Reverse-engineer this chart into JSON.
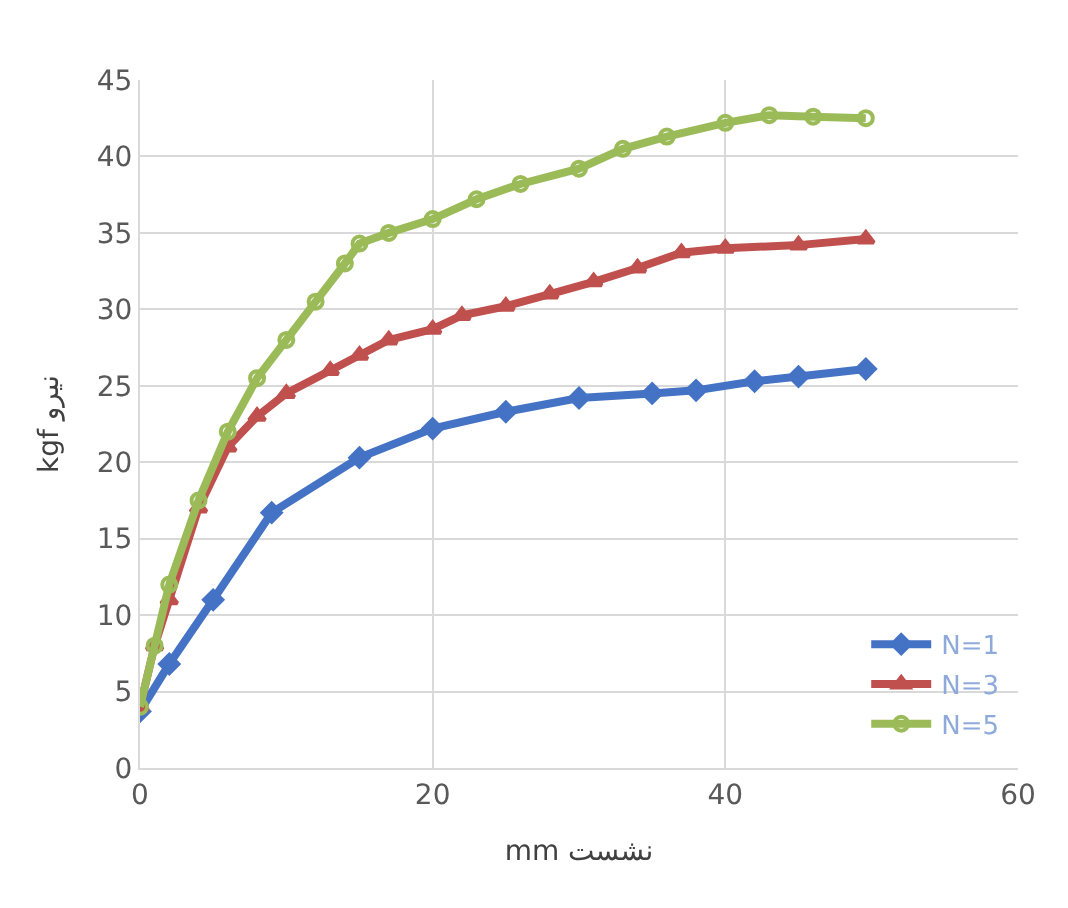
{
  "chart_data": {
    "type": "line",
    "xlabel": "mm نشست",
    "ylabel": "kgf نیرو",
    "xlim": [
      0,
      60
    ],
    "xticks": [
      0,
      20,
      40,
      60
    ],
    "ylim": [
      0,
      45
    ],
    "yticks": [
      0,
      5,
      10,
      15,
      20,
      25,
      30,
      35,
      40,
      45
    ],
    "grid": true,
    "legend": "bottom right",
    "line_style": "solid",
    "series": [
      {
        "name": "N=1",
        "color": "#4472c4",
        "marker": "diamond",
        "x": [
          0,
          2,
          5,
          9,
          15,
          20,
          25,
          30,
          35,
          38,
          42,
          45,
          49.6
        ],
        "values": [
          3.7,
          6.8,
          11,
          16.7,
          20.3,
          22.2,
          23.3,
          24.2,
          24.5,
          24.7,
          25.3,
          25.6,
          26.1
        ]
      },
      {
        "name": "N=3",
        "color": "#c0504d",
        "marker": "triangle",
        "x": [
          0,
          1,
          2,
          4,
          6,
          8,
          10,
          13,
          15,
          17,
          20,
          22,
          25,
          28,
          31,
          34,
          37,
          40,
          45,
          49.6
        ],
        "values": [
          4,
          8,
          11,
          17,
          21,
          23,
          24.5,
          26,
          27,
          28,
          28.7,
          29.6,
          30.2,
          31,
          31.8,
          32.7,
          33.7,
          34,
          34.2,
          34.6
        ]
      },
      {
        "name": "N=5",
        "color": "#9bbb59",
        "marker": "circle",
        "x": [
          0,
          1,
          2,
          4,
          6,
          8,
          10,
          12,
          14,
          15,
          17,
          20,
          23,
          26,
          30,
          33,
          36,
          40,
          43,
          46,
          49.6
        ],
        "values": [
          4,
          8,
          12,
          17.5,
          22,
          25.5,
          28,
          30.5,
          33,
          34.3,
          35,
          35.9,
          37.2,
          38.2,
          39.2,
          40.5,
          41.3,
          42.2,
          42.7,
          42.6,
          42.5
        ]
      }
    ]
  }
}
